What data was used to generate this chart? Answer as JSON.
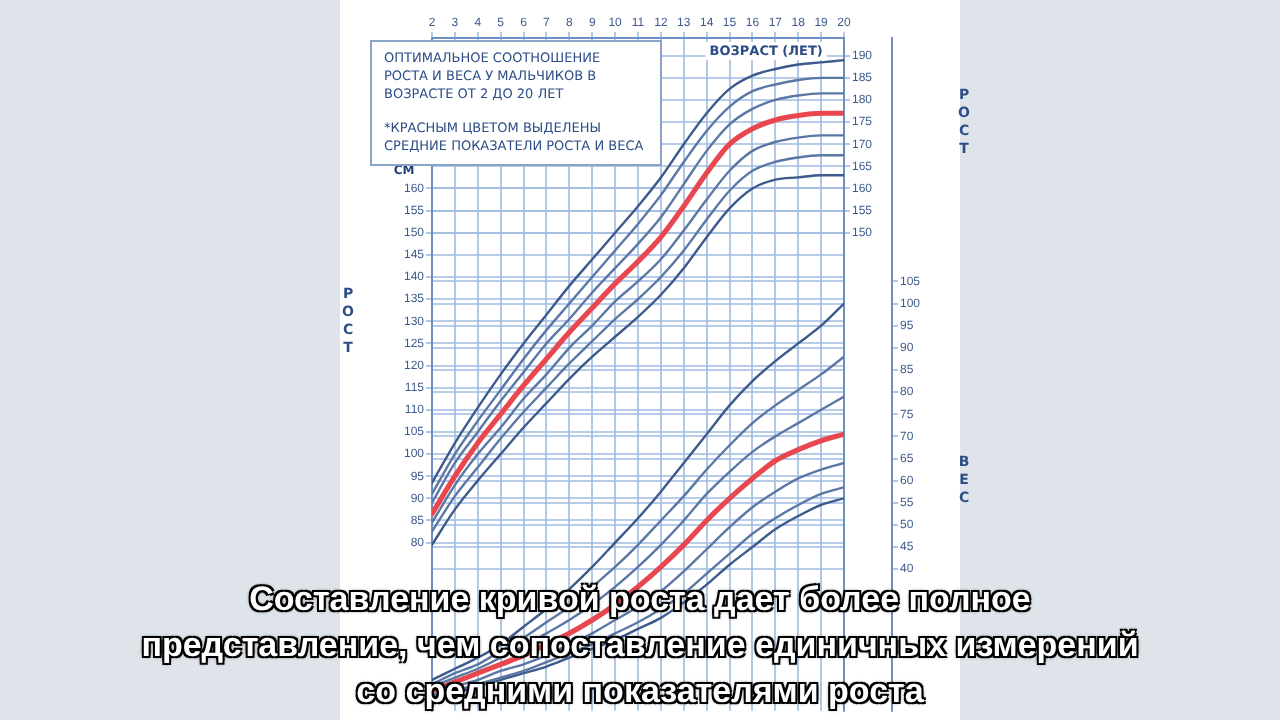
{
  "chart_data": {
    "type": "line",
    "title": "ОПТИМАЛЬНОЕ СООТНОШЕНИЕ РОСТА И ВЕСА У МАЛЬЧИКОВ В ВОЗРАСТЕ ОТ 2 ДО 20 ЛЕТ",
    "subtitle": "*КРАСНЫМ ЦВЕТОМ ВЫДЕЛЕНЫ СРЕДНИЕ ПОКАЗАТЕЛИ РОСТА И ВЕСА",
    "xlabel": "ВОЗРАСТ (ЛЕТ)",
    "ylabel": "РОСТ",
    "y3label": "РОСТ",
    "y2label": "ВЕС",
    "annotations": [
      "СМ",
      "Составление кривой роста дает более полное представление, чем сопоставление единичных измерений со средними показателями роста"
    ],
    "x": [
      2,
      3,
      4,
      5,
      6,
      7,
      8,
      9,
      10,
      11,
      12,
      13,
      14,
      15,
      16,
      17,
      18,
      19,
      20
    ],
    "xlim": [
      2,
      20
    ],
    "xticks": [
      2,
      3,
      4,
      5,
      6,
      7,
      8,
      9,
      10,
      11,
      12,
      13,
      14,
      15,
      16,
      17,
      18,
      19,
      20
    ],
    "ylim": [
      42,
      194
    ],
    "yticks": [
      80,
      85,
      90,
      95,
      100,
      105,
      110,
      115,
      120,
      125,
      130,
      135,
      140,
      145,
      150,
      155,
      160
    ],
    "y3lim": [
      42,
      194
    ],
    "y3ticks": [
      150,
      155,
      160,
      165,
      170,
      175,
      180,
      185,
      190
    ],
    "y2lim": [
      8,
      160
    ],
    "y2ticks": [
      40,
      45,
      50,
      55,
      60,
      65,
      70,
      75,
      80,
      85,
      90,
      95,
      100,
      105
    ],
    "grid": true,
    "series": [
      {
        "color": "#3d5a8c",
        "axis": "y",
        "values": [
          93.5,
          102.5,
          110.5,
          118,
          125,
          131.5,
          138,
          144,
          150,
          156,
          162.5,
          170,
          177,
          182.5,
          185.5,
          187,
          188,
          188.5,
          189
        ]
      },
      {
        "color": "#5b77a5",
        "axis": "y",
        "values": [
          91,
          100,
          107.5,
          114.5,
          121.5,
          128,
          134,
          140,
          146,
          152,
          158.5,
          166,
          173,
          178.5,
          182,
          183.5,
          184.5,
          185,
          185
        ]
      },
      {
        "color": "#5b77a5",
        "axis": "y",
        "values": [
          89,
          98,
          105,
          112,
          118.5,
          125,
          130.5,
          136.5,
          142,
          147.5,
          153.5,
          161,
          168.5,
          174.5,
          178,
          180,
          181,
          181.5,
          181.5
        ]
      },
      {
        "color": "#e8474f",
        "axis": "y",
        "values": [
          86.5,
          95,
          102.5,
          109,
          115.5,
          121.5,
          127.5,
          133,
          138.5,
          143.5,
          149,
          156,
          163.5,
          170,
          173.5,
          175.5,
          176.5,
          177,
          177
        ]
      },
      {
        "color": "#5b77a5",
        "axis": "y",
        "values": [
          84.5,
          93,
          100,
          106,
          112.5,
          118,
          124,
          129,
          134.5,
          139,
          144,
          150.5,
          157.5,
          164,
          168.5,
          170.5,
          171.5,
          172,
          172
        ]
      },
      {
        "color": "#5b77a5",
        "axis": "y",
        "values": [
          82.5,
          90.5,
          97,
          103.5,
          109.5,
          115,
          120.5,
          125.5,
          130.5,
          135,
          140,
          146,
          153,
          159.5,
          164,
          166,
          167,
          167.5,
          167.5
        ]
      },
      {
        "color": "#3d5a8c",
        "axis": "y",
        "values": [
          79.5,
          87.5,
          94,
          100,
          106,
          111.5,
          117,
          122,
          126.5,
          131,
          136,
          142,
          149,
          155.5,
          160,
          162,
          162.5,
          163,
          163
        ]
      },
      {
        "color": "#3d5a8c",
        "axis": "y2",
        "values": [
          15,
          17.5,
          20,
          23,
          27,
          31,
          35.5,
          40.5,
          46,
          51.5,
          57.5,
          64,
          70.5,
          77,
          82.5,
          87,
          91,
          95,
          100
        ]
      },
      {
        "color": "#5b77a5",
        "axis": "y2",
        "values": [
          14,
          16.5,
          18.5,
          21.5,
          24.5,
          28,
          31.5,
          36,
          40.5,
          45.5,
          51,
          56.5,
          62.5,
          68,
          73,
          77,
          80.5,
          84,
          88
        ]
      },
      {
        "color": "#5b77a5",
        "axis": "y2",
        "values": [
          13.5,
          15.5,
          17.5,
          20,
          22.5,
          25.5,
          28.5,
          32,
          36,
          40.5,
          45.5,
          51,
          57,
          62,
          66.5,
          70,
          73,
          76,
          79
        ]
      },
      {
        "color": "#e8474f",
        "axis": "y2",
        "values": [
          12.5,
          14.5,
          16.5,
          18.5,
          20.5,
          23,
          25.5,
          28.5,
          32,
          36,
          40.5,
          45.5,
          51,
          56,
          60.5,
          64.5,
          67,
          69,
          70.5
        ]
      },
      {
        "color": "#5b77a5",
        "axis": "y2",
        "values": [
          11.5,
          13.5,
          15,
          17,
          18.5,
          20.5,
          23,
          25.5,
          28.5,
          31.5,
          35,
          39.5,
          44.5,
          49.5,
          54,
          57.5,
          60.5,
          62.5,
          64
        ]
      },
      {
        "color": "#5b77a5",
        "axis": "y2",
        "values": [
          11,
          12.5,
          14,
          15.5,
          17,
          19,
          21,
          23,
          25.5,
          28,
          31,
          34.5,
          39,
          43.5,
          48,
          51.5,
          54.5,
          57,
          58.5
        ]
      },
      {
        "color": "#3d5a8c",
        "axis": "y2",
        "values": [
          10.5,
          12,
          13.5,
          15,
          16.5,
          18,
          20,
          22,
          24,
          26.5,
          29,
          32.5,
          36.5,
          41,
          45,
          49,
          52,
          54.5,
          56
        ]
      }
    ]
  }
}
